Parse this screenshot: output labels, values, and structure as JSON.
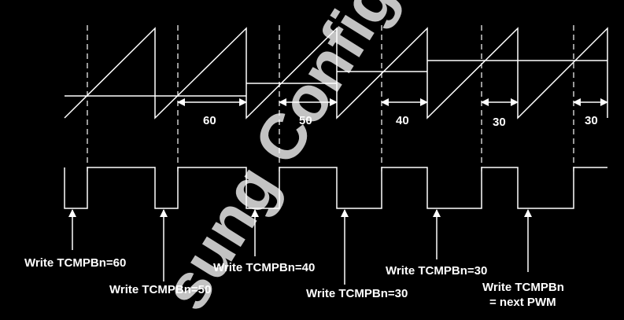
{
  "watermark": "sung Config",
  "widths": [
    "60",
    "50",
    "40",
    "30",
    "30"
  ],
  "writes": [
    "Write TCMPBn=60",
    "Write TCMPBn=50",
    "Write TCMPBn=40",
    "Write TCMPBn=30",
    "Write TCMPBn=30",
    "Write TCMPBn",
    "= next PWM"
  ]
}
